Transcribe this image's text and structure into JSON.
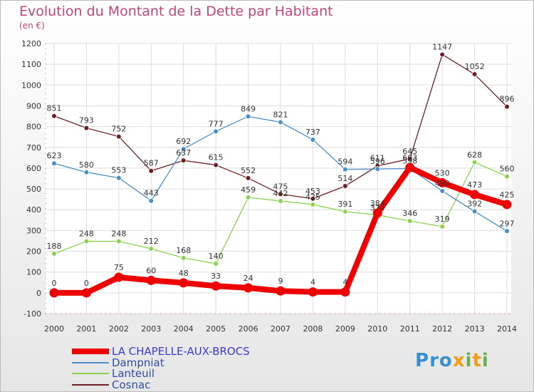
{
  "title": "Evolution du Montant de la Dette par Habitant",
  "subtitle": "(en €)",
  "logo_text": "Proxiti",
  "chart_data": {
    "type": "line",
    "title": "Evolution du Montant de la Dette par Habitant",
    "ylabel": "(en €)",
    "xlabel": "",
    "ylim": [
      -100,
      1200
    ],
    "yticks": [
      -100,
      0,
      100,
      200,
      300,
      400,
      500,
      600,
      700,
      800,
      900,
      1000,
      1100,
      1200
    ],
    "categories": [
      "2000",
      "2001",
      "2002",
      "2003",
      "2004",
      "2005",
      "2006",
      "2007",
      "2008",
      "2009",
      "2010",
      "2011",
      "2012",
      "2013",
      "2014"
    ],
    "series": [
      {
        "name": "Cosnac",
        "color": "#6b1f24",
        "values": [
          851,
          793,
          752,
          587,
          637,
          615,
          552,
          475,
          453,
          514,
          611,
          645,
          1147,
          1052,
          896
        ]
      },
      {
        "name": "Lanteuil",
        "color": "#8cd24e",
        "values": [
          188,
          248,
          248,
          212,
          168,
          140,
          459,
          442,
          425,
          391,
          374,
          346,
          319,
          628,
          560
        ]
      },
      {
        "name": "Dampniat",
        "color": "#4a8ec9",
        "values": [
          623,
          580,
          553,
          443,
          692,
          777,
          849,
          821,
          737,
          594,
          596,
          598,
          490,
          392,
          297
        ]
      },
      {
        "name": "LA CHAPELLE-AUX-BROCS",
        "color": "#ee0000",
        "values": [
          0,
          0,
          75,
          60,
          48,
          33,
          24,
          9,
          4,
          4,
          384,
          603,
          530,
          473,
          425
        ]
      }
    ]
  }
}
